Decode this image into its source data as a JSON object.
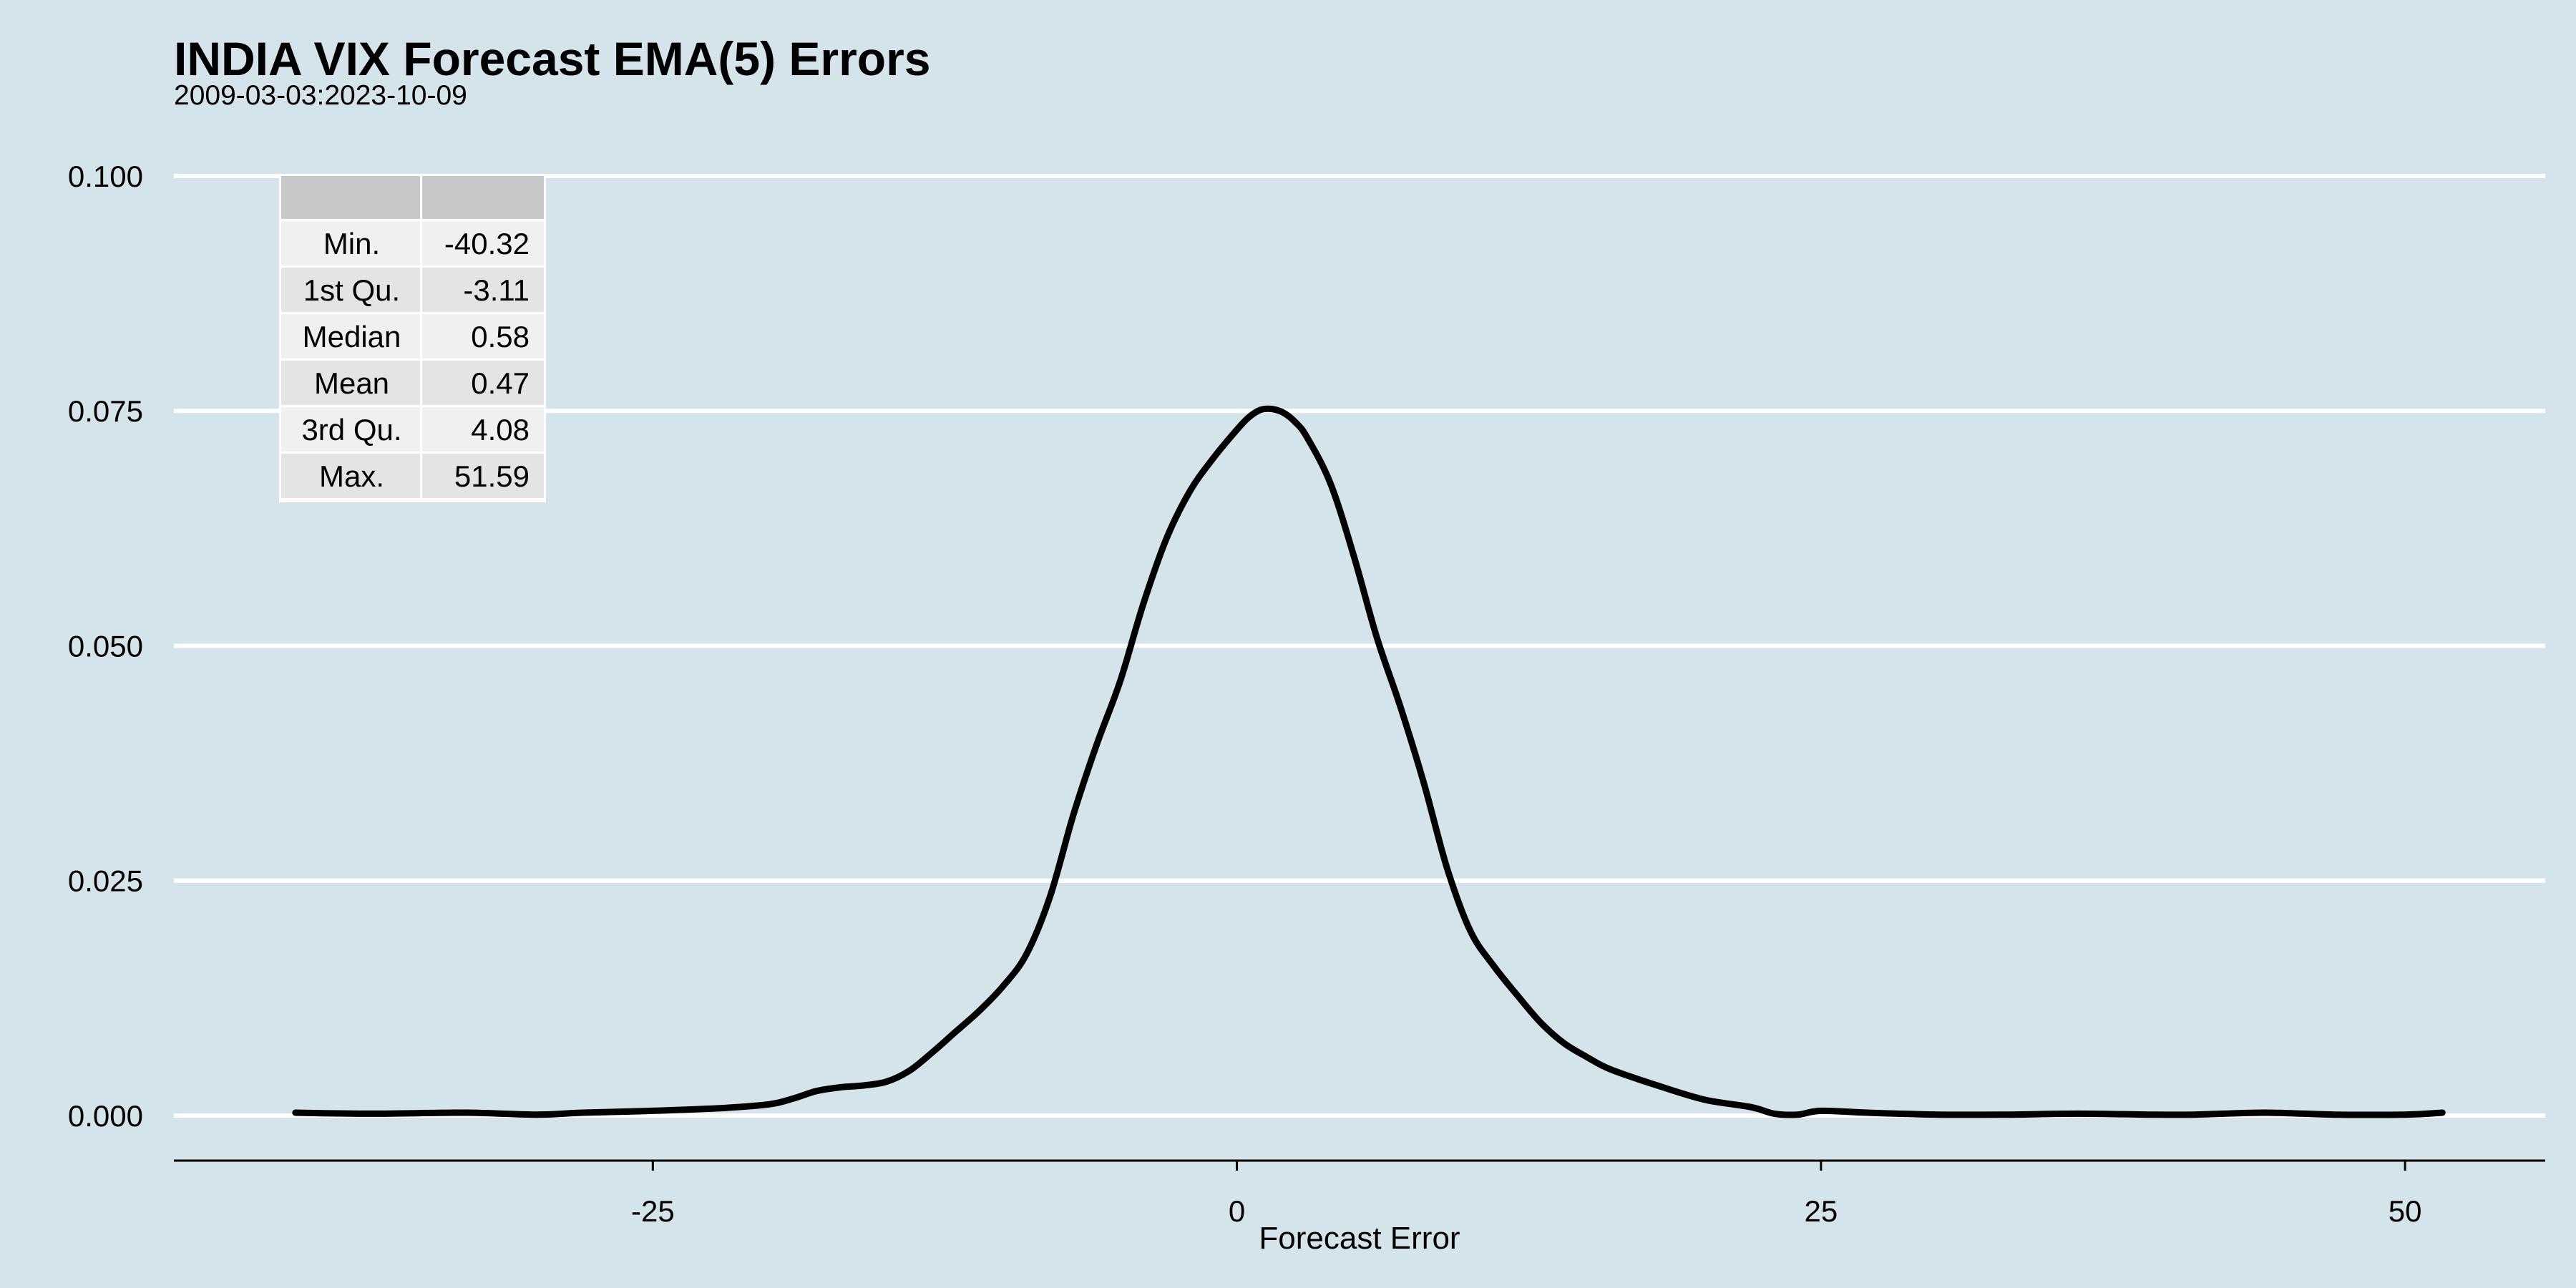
{
  "chart_data": {
    "type": "line",
    "title": "INDIA VIX Forecast EMA(5) Errors",
    "subtitle": "2009-03-03:2023-10-09",
    "xlabel": "Forecast Error",
    "ylabel": "",
    "xlim": [
      -45.5,
      56
    ],
    "ylim": [
      -0.0048,
      0.1
    ],
    "x_ticks": [
      -25,
      0,
      25,
      50
    ],
    "x_tick_labels": [
      "-25",
      "0",
      "25",
      "50"
    ],
    "y_ticks": [
      0,
      0.025,
      0.05,
      0.075,
      0.1
    ],
    "y_tick_labels": [
      "0.000",
      "0.025",
      "0.050",
      "0.075",
      "0.100"
    ],
    "grid": "horizontal",
    "legend": "none",
    "line_color": "#000000",
    "series": [
      {
        "x": [
          -40.3,
          -37,
          -33,
          -30,
          -28,
          -25,
          -22,
          -20,
          -19,
          -18,
          -17,
          -16,
          -15,
          -14,
          -13,
          -12,
          -11,
          -10,
          -9,
          -8,
          -7,
          -6,
          -5,
          -4,
          -3,
          -2,
          -1,
          0,
          0.5,
          1,
          1.5,
          2,
          2.5,
          3,
          4,
          5,
          6,
          7,
          8,
          9,
          10,
          11,
          12,
          13,
          14,
          15,
          16,
          18,
          20,
          22,
          23,
          24,
          25,
          27,
          30,
          33,
          36,
          39,
          41,
          44,
          47,
          50,
          51.6
        ],
        "values": [
          0.0003,
          0.0002,
          0.0003,
          0.0001,
          0.0003,
          0.0005,
          0.0008,
          0.0012,
          0.0018,
          0.0026,
          0.003,
          0.0032,
          0.0036,
          0.0048,
          0.0068,
          0.009,
          0.0112,
          0.0138,
          0.0172,
          0.0233,
          0.032,
          0.0395,
          0.0462,
          0.0545,
          0.0615,
          0.0665,
          0.07,
          0.073,
          0.0743,
          0.0751,
          0.0752,
          0.0748,
          0.0738,
          0.0722,
          0.0673,
          0.0596,
          0.0508,
          0.0435,
          0.0354,
          0.0263,
          0.0196,
          0.0159,
          0.0128,
          0.0099,
          0.0077,
          0.0062,
          0.0049,
          0.0032,
          0.0017,
          0.0009,
          0.0002,
          0.0001,
          0.0005,
          0.0003,
          0.0001,
          0.0001,
          0.0002,
          0.0001,
          0.0001,
          0.0003,
          0.0001,
          0.0001,
          0.0003
        ]
      }
    ],
    "summary_table": {
      "headers": [
        "",
        ""
      ],
      "rows": [
        [
          "Min.",
          "-40.32"
        ],
        [
          "1st Qu.",
          "-3.11"
        ],
        [
          "Median",
          "0.58"
        ],
        [
          "Mean",
          "0.47"
        ],
        [
          "3rd Qu.",
          "4.08"
        ],
        [
          "Max.",
          "51.59"
        ]
      ]
    }
  }
}
